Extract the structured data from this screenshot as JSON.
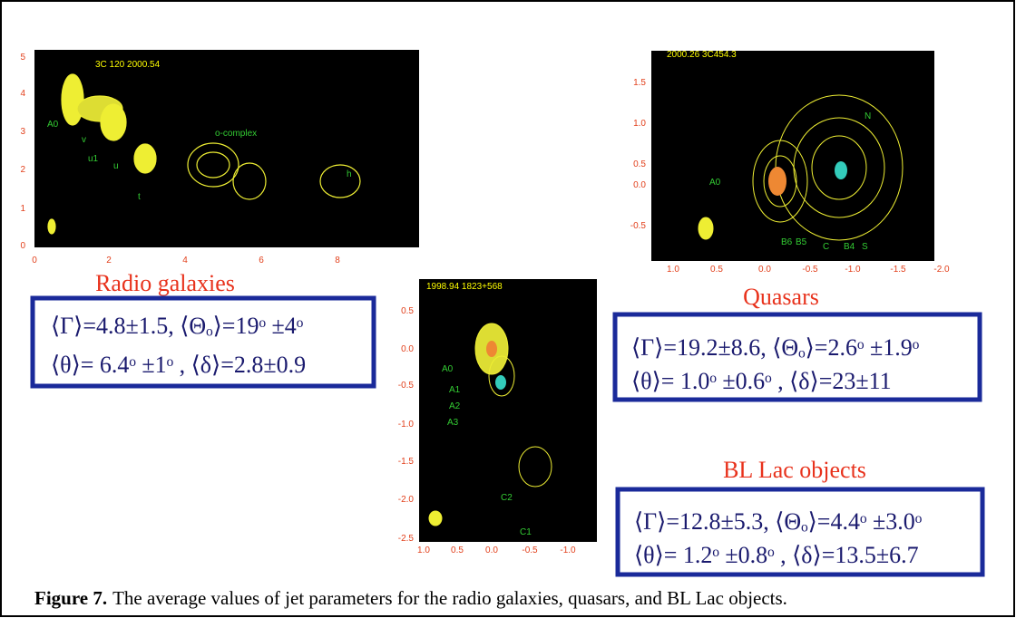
{
  "panels": [
    {
      "title": "3C 120  2000.54",
      "yticks": [
        "5",
        "4",
        "3",
        "2",
        "1",
        "0"
      ],
      "xticks": [
        "0",
        "2",
        "4",
        "6",
        "8"
      ],
      "components": [
        "A0",
        "v",
        "u1",
        "u",
        "t",
        "o-complex",
        "h"
      ]
    },
    {
      "title": "2000.26  3C454.3",
      "yticks": [
        "1.5",
        "1.0",
        "0.5",
        "0.0",
        "-0.5"
      ],
      "xticks": [
        "1.0",
        "0.5",
        "0.0",
        "-0.5",
        "-1.0",
        "-1.5",
        "-2.0"
      ],
      "components": [
        "A0",
        "N",
        "B6",
        "B5",
        "C",
        "B4",
        "S"
      ]
    },
    {
      "title": "1998.94  1823+568",
      "yticks": [
        "0.5",
        "0.0",
        "-0.5",
        "-1.0",
        "-1.5",
        "-2.0",
        "-2.5"
      ],
      "xticks": [
        "1.0",
        "0.5",
        "0.0",
        "-0.5",
        "-1.0"
      ],
      "components": [
        "A0",
        "A1",
        "A2",
        "A3",
        "C2",
        "C1"
      ]
    }
  ],
  "groups": [
    {
      "heading": "Radio galaxies",
      "lines": [
        "⟨Γ⟩=4.8±1.5, ⟨Θₒ⟩=19ᵒ ±4ᵒ",
        "⟨θ⟩= 6.4ᵒ ±1ᵒ , ⟨δ⟩=2.8±0.9"
      ]
    },
    {
      "heading": "Quasars",
      "lines": [
        "⟨Γ⟩=19.2±8.6, ⟨Θₒ⟩=2.6ᵒ ±1.9ᵒ",
        "⟨θ⟩= 1.0ᵒ ±0.6ᵒ , ⟨δ⟩=23±11"
      ]
    },
    {
      "heading": "BL Lac objects",
      "lines": [
        "⟨Γ⟩=12.8±5.3, ⟨Θₒ⟩=4.4ᵒ ±3.0ᵒ",
        "⟨θ⟩= 1.2ᵒ ±0.8ᵒ , ⟨δ⟩=13.5±6.7"
      ]
    }
  ],
  "caption": {
    "label": "Figure 7.",
    "text": "The average values of jet parameters for the radio galaxies, quasars, and BL Lac objects."
  }
}
